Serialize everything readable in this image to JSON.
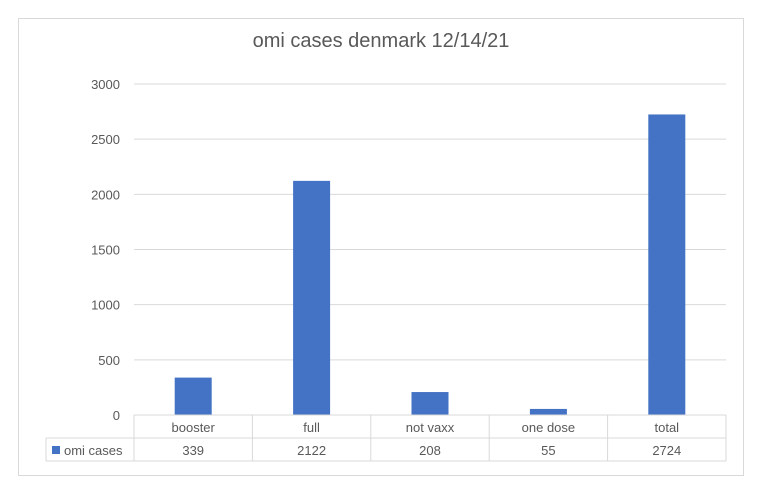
{
  "chart_data": {
    "type": "bar",
    "title": "omi cases denmark 12/14/21",
    "categories": [
      "booster",
      "full",
      "not vaxx",
      "one dose",
      "total"
    ],
    "series": [
      {
        "name": "omi cases",
        "values": [
          339,
          2122,
          208,
          55,
          2724
        ]
      }
    ],
    "ylim": [
      0,
      3000
    ],
    "yticks": [
      0,
      500,
      1000,
      1500,
      2000,
      2500,
      3000
    ],
    "grid": true,
    "legend": "data-table",
    "data_table": true,
    "colors": {
      "bar": "#4472c4",
      "grid": "#d9d9d9",
      "text": "#595959",
      "title": "#595959"
    }
  }
}
